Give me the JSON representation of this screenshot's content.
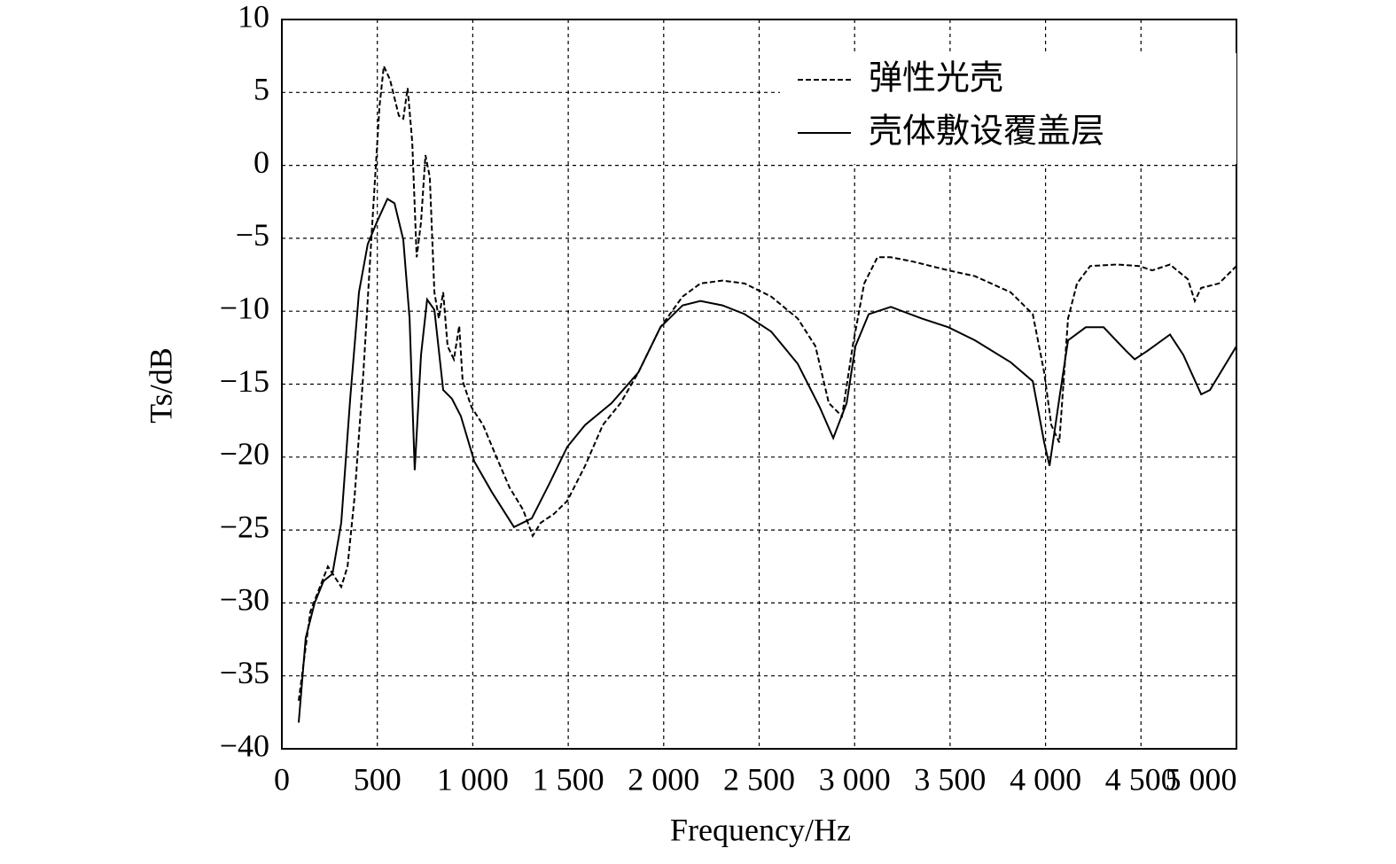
{
  "chart_data": {
    "type": "line",
    "xlabel": "Frequency/Hz",
    "ylabel": "Ts/dB",
    "xlim": [
      0,
      5000
    ],
    "ylim": [
      -40,
      10
    ],
    "xticks": [
      0,
      500,
      {
        "value": 1000,
        "label": "1 000"
      },
      {
        "value": 1500,
        "label": "1 500"
      },
      {
        "value": 2000,
        "label": "2 000"
      },
      {
        "value": 2500,
        "label": "2 500"
      },
      {
        "value": 3000,
        "label": "3 000"
      },
      {
        "value": 3500,
        "label": "3 500"
      },
      {
        "value": 4000,
        "label": "4 000"
      },
      {
        "value": 4500,
        "label": "4 500"
      },
      {
        "value": 5000,
        "label": "5 000"
      }
    ],
    "yticks": [
      {
        "value": -40,
        "label": "−40"
      },
      {
        "value": -35,
        "label": "−35"
      },
      {
        "value": -30,
        "label": "−30"
      },
      {
        "value": -25,
        "label": "−25"
      },
      {
        "value": -20,
        "label": "−20"
      },
      {
        "value": -15,
        "label": "−15"
      },
      {
        "value": -10,
        "label": "−10"
      },
      {
        "value": -5,
        "label": "−5"
      },
      0,
      5,
      10
    ],
    "grid": true,
    "legend": "upper right",
    "series": [
      {
        "name": "弹性光壳",
        "color": "#000000",
        "dash": true,
        "x": [
          88,
          149,
          241,
          311,
          344,
          381,
          427,
          474,
          511,
          534,
          566,
          613,
          636,
          659,
          683,
          706,
          729,
          752,
          775,
          799,
          822,
          845,
          868,
          901,
          929,
          947,
          994,
          1054,
          1124,
          1193,
          1263,
          1314,
          1356,
          1425,
          1495,
          1588,
          1681,
          1774,
          1867,
          1983,
          2099,
          2192,
          2308,
          2424,
          2563,
          2702,
          2795,
          2865,
          2934,
          2990,
          3050,
          3120,
          3190,
          3306,
          3491,
          3631,
          3817,
          3933,
          3993,
          4030,
          4072,
          4118,
          4165,
          4234,
          4374,
          4490,
          4559,
          4652,
          4745,
          4782,
          4815,
          4908,
          5000
        ],
        "values": [
          -36.7,
          -30.6,
          -27.5,
          -28.9,
          -27.5,
          -22.7,
          -14.2,
          -3.9,
          4.0,
          6.8,
          5.9,
          3.4,
          3.2,
          5.3,
          1.6,
          -6.3,
          -3.9,
          0.7,
          -0.8,
          -8.7,
          -10.5,
          -8.7,
          -12.4,
          -13.3,
          -11.0,
          -14.8,
          -16.6,
          -17.8,
          -20,
          -22.1,
          -23.6,
          -25.4,
          -24.5,
          -23.9,
          -23.0,
          -20.6,
          -17.8,
          -16.3,
          -14.2,
          -11.1,
          -9.0,
          -8.1,
          -7.9,
          -8.1,
          -9.0,
          -10.5,
          -12.4,
          -16.3,
          -17.2,
          -12.4,
          -8.1,
          -6.3,
          -6.3,
          -6.6,
          -7.2,
          -7.6,
          -8.7,
          -10.2,
          -14.2,
          -17.8,
          -19.0,
          -10.5,
          -8.1,
          -6.9,
          -6.8,
          -6.9,
          -7.2,
          -6.8,
          -7.8,
          -9.3,
          -8.4,
          -8.1,
          -6.9
        ]
      },
      {
        "name": "壳体敷设覆盖层",
        "color": "#000000",
        "dash": false,
        "x": [
          88,
          125,
          172,
          218,
          265,
          311,
          358,
          404,
          450,
          497,
          553,
          590,
          636,
          669,
          696,
          729,
          761,
          799,
          845,
          891,
          938,
          1008,
          1100,
          1216,
          1309,
          1402,
          1495,
          1588,
          1727,
          1867,
          1983,
          2099,
          2192,
          2308,
          2424,
          2563,
          2702,
          2818,
          2888,
          2958,
          3004,
          3074,
          3190,
          3352,
          3491,
          3631,
          3817,
          3933,
          3993,
          4021,
          4072,
          4118,
          4211,
          4304,
          4420,
          4467,
          4536,
          4652,
          4722,
          4815,
          4861,
          5000
        ],
        "values": [
          -38.2,
          -32.4,
          -30.0,
          -28.5,
          -28.0,
          -24.5,
          -16.0,
          -8.7,
          -5.4,
          -3.9,
          -2.3,
          -2.6,
          -5.1,
          -10.5,
          -20.9,
          -13.0,
          -9.2,
          -9.9,
          -15.4,
          -16.0,
          -17.2,
          -20.3,
          -22.4,
          -24.8,
          -24.2,
          -21.8,
          -19.3,
          -17.8,
          -16.3,
          -14.2,
          -11.1,
          -9.6,
          -9.3,
          -9.6,
          -10.2,
          -11.4,
          -13.6,
          -16.6,
          -18.7,
          -16.3,
          -12.4,
          -10.2,
          -9.7,
          -10.5,
          -11.1,
          -12.0,
          -13.5,
          -14.8,
          -19.0,
          -20.6,
          -16.0,
          -12.0,
          -11.1,
          -11.1,
          -12.7,
          -13.3,
          -12.7,
          -11.6,
          -13.0,
          -15.7,
          -15.4,
          -12.4
        ]
      }
    ]
  }
}
